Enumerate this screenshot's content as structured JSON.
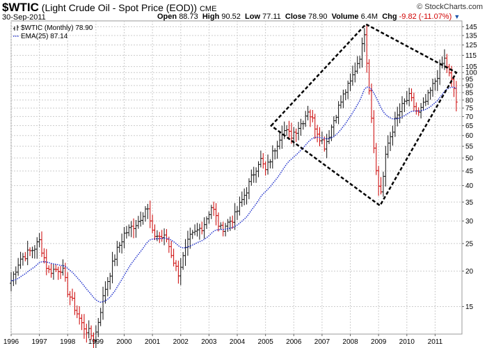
{
  "header": {
    "symbol": "$WTIC",
    "description": "(Light Crude Oil - Spot Price (EOD))",
    "exchange": "CME",
    "date": "30-Sep-2011",
    "brand": "© StockCharts.com",
    "quote": {
      "open_label": "Open",
      "open": "88.73",
      "high_label": "High",
      "high": "90.52",
      "low_label": "Low",
      "low": "77.11",
      "close_label": "Close",
      "close": "78.90",
      "volume_label": "Volume",
      "volume": "6.4M",
      "chg_label": "Chg",
      "chg": "-9.82 (-11.07%)"
    }
  },
  "legend": {
    "price": "$WTIC (Monthly) 78.90",
    "ema": "EMA(25) 87.14"
  },
  "colors": {
    "up": "#111111",
    "down": "#cc0000",
    "ema": "#2233cc",
    "grid": "#cccccc",
    "pattern": "#000000"
  },
  "chart_data": {
    "type": "ohlc-bar",
    "scale": "log",
    "ylim": [
      12,
      152
    ],
    "y_ticks": [
      15,
      20,
      25,
      30,
      35,
      40,
      45,
      50,
      55,
      60,
      65,
      70,
      75,
      80,
      85,
      90,
      95,
      100,
      105,
      115,
      125,
      135,
      145
    ],
    "x_ticks": [
      "1996",
      "1997",
      "1998",
      "1999",
      "2000",
      "2001",
      "2002",
      "2003",
      "2004",
      "2005",
      "2006",
      "2007",
      "2008",
      "2009",
      "2010",
      "2011"
    ],
    "x_tick_years": [
      1996,
      1997,
      1998,
      1999,
      2000,
      2001,
      2002,
      2003,
      2004,
      2005,
      2006,
      2007,
      2008,
      2009,
      2010,
      2011
    ],
    "x_range": [
      1996.0,
      2011.95
    ],
    "anchors": [
      [
        1996.0,
        18.5
      ],
      [
        1996.3,
        22
      ],
      [
        1996.8,
        24
      ],
      [
        1997.0,
        25.5
      ],
      [
        1997.3,
        20
      ],
      [
        1997.8,
        20.5
      ],
      [
        1998.0,
        17
      ],
      [
        1998.5,
        13
      ],
      [
        1998.95,
        11.5
      ],
      [
        1999.3,
        17
      ],
      [
        1999.7,
        23
      ],
      [
        2000.0,
        27
      ],
      [
        2000.5,
        30
      ],
      [
        2000.8,
        34
      ],
      [
        2001.0,
        27
      ],
      [
        2001.5,
        26
      ],
      [
        2001.9,
        19.5
      ],
      [
        2002.3,
        26
      ],
      [
        2002.8,
        29
      ],
      [
        2003.1,
        34
      ],
      [
        2003.4,
        28
      ],
      [
        2003.9,
        31
      ],
      [
        2004.3,
        38
      ],
      [
        2004.8,
        50
      ],
      [
        2005.0,
        45
      ],
      [
        2005.6,
        63
      ],
      [
        2005.9,
        60
      ],
      [
        2006.3,
        67
      ],
      [
        2006.5,
        74
      ],
      [
        2006.9,
        60
      ],
      [
        2007.1,
        55
      ],
      [
        2007.5,
        72
      ],
      [
        2007.8,
        85
      ],
      [
        2008.0,
        92
      ],
      [
        2008.4,
        120
      ],
      [
        2008.5,
        140
      ],
      [
        2008.75,
        70
      ],
      [
        2008.95,
        41
      ],
      [
        2009.1,
        38
      ],
      [
        2009.3,
        55
      ],
      [
        2009.6,
        68
      ],
      [
        2009.9,
        78
      ],
      [
        2010.1,
        82
      ],
      [
        2010.4,
        71
      ],
      [
        2010.7,
        80
      ],
      [
        2010.95,
        91
      ],
      [
        2011.2,
        105
      ],
      [
        2011.35,
        112
      ],
      [
        2011.5,
        98
      ],
      [
        2011.7,
        86
      ],
      [
        2011.75,
        79
      ]
    ],
    "ema_period": 25,
    "annotation": {
      "shape": "dashed-diamond",
      "points": [
        [
          2005.2,
          65
        ],
        [
          2008.55,
          148
        ],
        [
          2011.75,
          100
        ],
        [
          2009.05,
          34
        ]
      ]
    }
  }
}
